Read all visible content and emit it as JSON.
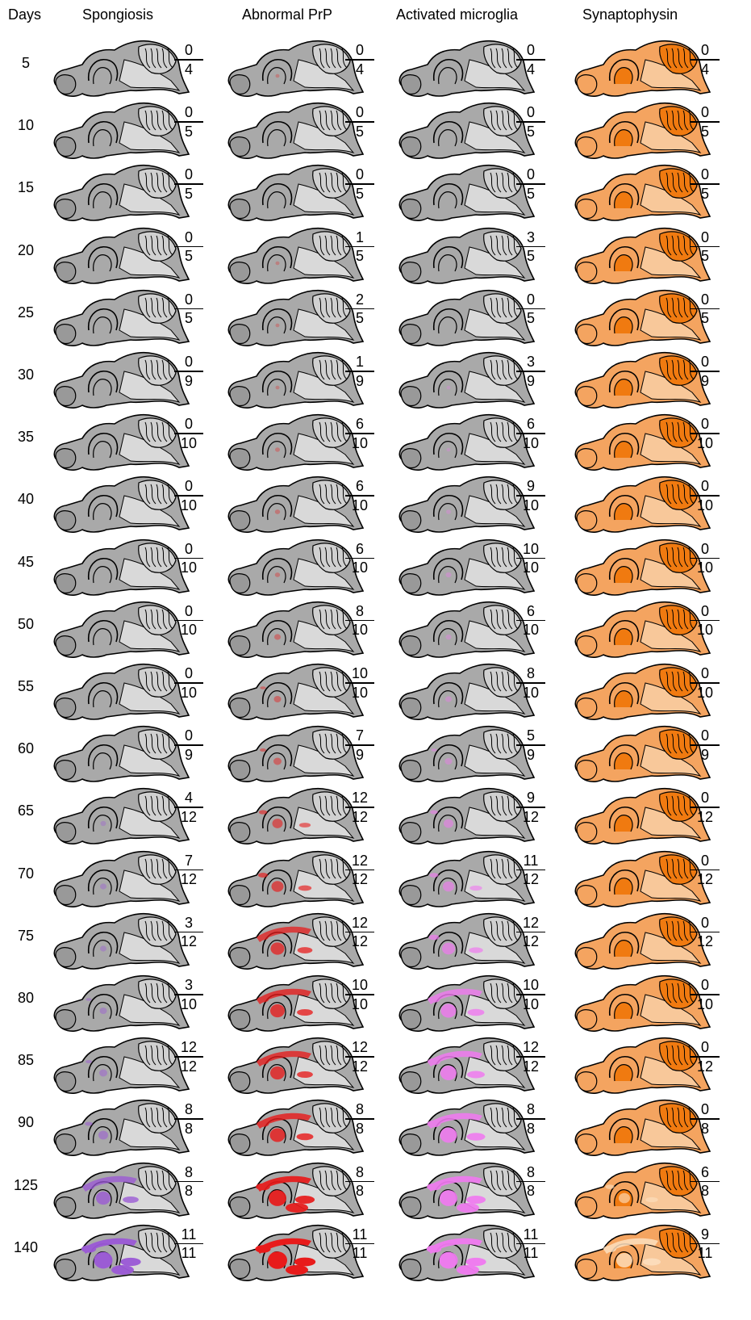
{
  "headers": {
    "days": "Days",
    "spongiosis": "Spongiosis",
    "abnormal_prp": "Abnormal PrP",
    "activated_microglia": "Activated microglia",
    "synaptophysin": "Synaptophysin"
  },
  "colors": {
    "brain_base": "#a9a9a9",
    "brain_light": "#d9d9d9",
    "spongiosis": "#9b59d6",
    "prp": "#e81b1b",
    "microglia": "#f07af0",
    "synaptophysin_base": "#f4a460",
    "synaptophysin_dark": "#f07a10"
  },
  "rows": [
    {
      "day": "5",
      "sp": [
        "0",
        "4"
      ],
      "prp": [
        "0",
        "4"
      ],
      "mg": [
        "0",
        "4"
      ],
      "syn": [
        "0",
        "4"
      ],
      "lv": {
        "sp": 0,
        "prp": 0.05,
        "mg": 0,
        "syn": 0
      }
    },
    {
      "day": "10",
      "sp": [
        "0",
        "5"
      ],
      "prp": [
        "0",
        "5"
      ],
      "mg": [
        "0",
        "5"
      ],
      "syn": [
        "0",
        "5"
      ],
      "lv": {
        "sp": 0,
        "prp": 0,
        "mg": 0,
        "syn": 0
      }
    },
    {
      "day": "15",
      "sp": [
        "0",
        "5"
      ],
      "prp": [
        "0",
        "5"
      ],
      "mg": [
        "0",
        "5"
      ],
      "syn": [
        "0",
        "5"
      ],
      "lv": {
        "sp": 0,
        "prp": 0,
        "mg": 0,
        "syn": 0
      }
    },
    {
      "day": "20",
      "sp": [
        "0",
        "5"
      ],
      "prp": [
        "1",
        "5"
      ],
      "mg": [
        "3",
        "5"
      ],
      "syn": [
        "0",
        "5"
      ],
      "lv": {
        "sp": 0,
        "prp": 0.05,
        "mg": 0,
        "syn": 0
      }
    },
    {
      "day": "25",
      "sp": [
        "0",
        "5"
      ],
      "prp": [
        "2",
        "5"
      ],
      "mg": [
        "0",
        "5"
      ],
      "syn": [
        "0",
        "5"
      ],
      "lv": {
        "sp": 0,
        "prp": 0.05,
        "mg": 0,
        "syn": 0
      }
    },
    {
      "day": "30",
      "sp": [
        "0",
        "9"
      ],
      "prp": [
        "1",
        "9"
      ],
      "mg": [
        "3",
        "9"
      ],
      "syn": [
        "0",
        "9"
      ],
      "lv": {
        "sp": 0,
        "prp": 0.05,
        "mg": 0.05,
        "syn": 0
      }
    },
    {
      "day": "35",
      "sp": [
        "0",
        "10"
      ],
      "prp": [
        "6",
        "10"
      ],
      "mg": [
        "6",
        "10"
      ],
      "syn": [
        "0",
        "10"
      ],
      "lv": {
        "sp": 0,
        "prp": 0.1,
        "mg": 0.05,
        "syn": 0
      }
    },
    {
      "day": "40",
      "sp": [
        "0",
        "10"
      ],
      "prp": [
        "6",
        "10"
      ],
      "mg": [
        "9",
        "10"
      ],
      "syn": [
        "0",
        "10"
      ],
      "lv": {
        "sp": 0,
        "prp": 0.12,
        "mg": 0.1,
        "syn": 0
      }
    },
    {
      "day": "45",
      "sp": [
        "0",
        "10"
      ],
      "prp": [
        "6",
        "10"
      ],
      "mg": [
        "10",
        "10"
      ],
      "syn": [
        "0",
        "10"
      ],
      "lv": {
        "sp": 0,
        "prp": 0.12,
        "mg": 0.15,
        "syn": 0
      }
    },
    {
      "day": "50",
      "sp": [
        "0",
        "10"
      ],
      "prp": [
        "8",
        "10"
      ],
      "mg": [
        "6",
        "10"
      ],
      "syn": [
        "0",
        "10"
      ],
      "lv": {
        "sp": 0,
        "prp": 0.2,
        "mg": 0.15,
        "syn": 0
      }
    },
    {
      "day": "55",
      "sp": [
        "0",
        "10"
      ],
      "prp": [
        "10",
        "10"
      ],
      "mg": [
        "8",
        "10"
      ],
      "syn": [
        "0",
        "10"
      ],
      "lv": {
        "sp": 0,
        "prp": 0.25,
        "mg": 0.2,
        "syn": 0
      }
    },
    {
      "day": "60",
      "sp": [
        "0",
        "9"
      ],
      "prp": [
        "7",
        "9"
      ],
      "mg": [
        "5",
        "9"
      ],
      "syn": [
        "0",
        "9"
      ],
      "lv": {
        "sp": 0,
        "prp": 0.3,
        "mg": 0.25,
        "syn": 0
      }
    },
    {
      "day": "65",
      "sp": [
        "4",
        "12"
      ],
      "prp": [
        "12",
        "12"
      ],
      "mg": [
        "9",
        "12"
      ],
      "syn": [
        "0",
        "12"
      ],
      "lv": {
        "sp": 0.15,
        "prp": 0.45,
        "mg": 0.4,
        "syn": 0
      }
    },
    {
      "day": "70",
      "sp": [
        "7",
        "12"
      ],
      "prp": [
        "12",
        "12"
      ],
      "mg": [
        "11",
        "12"
      ],
      "syn": [
        "0",
        "12"
      ],
      "lv": {
        "sp": 0.2,
        "prp": 0.55,
        "mg": 0.5,
        "syn": 0
      }
    },
    {
      "day": "75",
      "sp": [
        "3",
        "12"
      ],
      "prp": [
        "12",
        "12"
      ],
      "mg": [
        "12",
        "12"
      ],
      "syn": [
        "0",
        "12"
      ],
      "lv": {
        "sp": 0.2,
        "prp": 0.65,
        "mg": 0.6,
        "syn": 0
      }
    },
    {
      "day": "80",
      "sp": [
        "3",
        "10"
      ],
      "prp": [
        "10",
        "10"
      ],
      "mg": [
        "10",
        "10"
      ],
      "syn": [
        "0",
        "10"
      ],
      "lv": {
        "sp": 0.25,
        "prp": 0.7,
        "mg": 0.75,
        "syn": 0
      }
    },
    {
      "day": "85",
      "sp": [
        "12",
        "12"
      ],
      "prp": [
        "12",
        "12"
      ],
      "mg": [
        "12",
        "12"
      ],
      "syn": [
        "0",
        "12"
      ],
      "lv": {
        "sp": 0.3,
        "prp": 0.7,
        "mg": 0.8,
        "syn": 0
      }
    },
    {
      "day": "90",
      "sp": [
        "8",
        "8"
      ],
      "prp": [
        "8",
        "8"
      ],
      "mg": [
        "8",
        "8"
      ],
      "syn": [
        "0",
        "8"
      ],
      "lv": {
        "sp": 0.4,
        "prp": 0.75,
        "mg": 0.85,
        "syn": 0
      }
    },
    {
      "day": "125",
      "sp": [
        "8",
        "8"
      ],
      "prp": [
        "8",
        "8"
      ],
      "mg": [
        "8",
        "8"
      ],
      "syn": [
        "6",
        "8"
      ],
      "lv": {
        "sp": 0.7,
        "prp": 0.9,
        "mg": 0.9,
        "syn": 0.5
      }
    },
    {
      "day": "140",
      "sp": [
        "11",
        "11"
      ],
      "prp": [
        "11",
        "11"
      ],
      "mg": [
        "11",
        "11"
      ],
      "syn": [
        "9",
        "11"
      ],
      "lv": {
        "sp": 0.95,
        "prp": 1.0,
        "mg": 0.95,
        "syn": 0.8
      }
    }
  ]
}
